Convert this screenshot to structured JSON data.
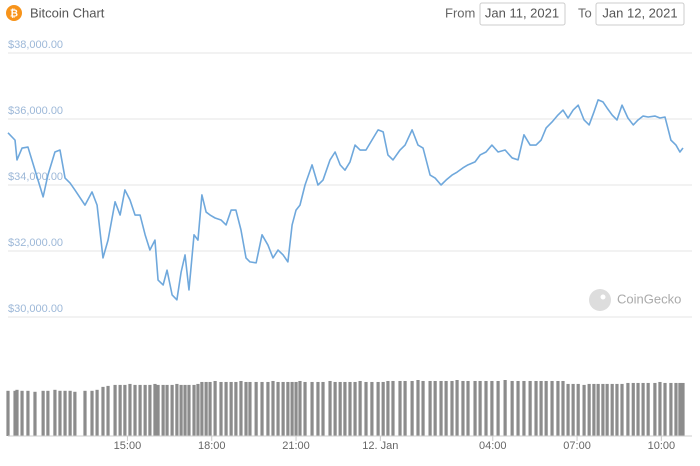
{
  "header": {
    "title": "Bitcoin Chart",
    "from_label": "From",
    "from_date": "Jan 11, 2021",
    "to_label": "To",
    "to_date": "Jan 12, 2021",
    "watermark": "CoinGecko"
  },
  "chart_data": {
    "type": "line",
    "color": "#6fa8dc",
    "volume_color": "#8c8c8c",
    "x": [
      10.75,
      11.0,
      11.07,
      11.25,
      11.46,
      11.71,
      12.0,
      12.17,
      12.42,
      12.6,
      12.78,
      12.96,
      13.13,
      13.49,
      13.74,
      13.92,
      14.13,
      14.31,
      14.56,
      14.74,
      14.91,
      15.09,
      15.27,
      15.45,
      15.63,
      15.8,
      15.98,
      16.09,
      16.27,
      16.41,
      16.59,
      16.76,
      16.91,
      17.05,
      17.19,
      17.37,
      17.51,
      17.65,
      17.8,
      17.94,
      18.12,
      18.33,
      18.51,
      18.69,
      18.86,
      19.04,
      19.22,
      19.36,
      19.58,
      19.79,
      20.0,
      20.18,
      20.36,
      20.54,
      20.71,
      20.86,
      21.0,
      21.14,
      21.32,
      21.57,
      21.78,
      21.96,
      22.21,
      22.39,
      22.57,
      22.74,
      22.92,
      23.1,
      23.28,
      23.49,
      23.7,
      23.92,
      24.1,
      24.27,
      24.45,
      24.7,
      24.88,
      25.13,
      25.34,
      25.52,
      25.77,
      25.95,
      26.16,
      26.34,
      26.55,
      26.73,
      26.94,
      27.12,
      27.37,
      27.55,
      27.76,
      27.97,
      28.19,
      28.44,
      28.69,
      28.9,
      29.11,
      29.33,
      29.54,
      29.72,
      29.9,
      30.11,
      30.32,
      30.5,
      30.68,
      30.86,
      31.04,
      31.25,
      31.43,
      31.6,
      31.75,
      31.92,
      32.07,
      32.25,
      32.42,
      32.6,
      32.81,
      33.0,
      33.17,
      33.35,
      33.53,
      33.77,
      33.95,
      34.13,
      34.34,
      34.52,
      34.66,
      34.77
    ],
    "values": [
      35580,
      35360,
      34760,
      35120,
      35150,
      34450,
      33640,
      34300,
      35000,
      35060,
      34210,
      34060,
      33850,
      33390,
      33790,
      33390,
      31790,
      32330,
      33490,
      33090,
      33850,
      33550,
      33090,
      33090,
      32490,
      32030,
      32330,
      31120,
      30970,
      31420,
      30670,
      30520,
      31360,
      31880,
      30820,
      32490,
      32330,
      33700,
      33180,
      33090,
      33000,
      32940,
      32790,
      33240,
      33240,
      32640,
      31790,
      31670,
      31640,
      32490,
      32180,
      31790,
      32030,
      31880,
      31670,
      32790,
      33240,
      33390,
      34000,
      34610,
      34000,
      34150,
      34760,
      35000,
      34610,
      34450,
      34700,
      35210,
      35060,
      35060,
      35360,
      35670,
      35610,
      34910,
      34760,
      35060,
      35210,
      35670,
      35210,
      35120,
      34300,
      34210,
      34000,
      34150,
      34300,
      34390,
      34520,
      34610,
      34700,
      34910,
      35000,
      35210,
      35000,
      35060,
      34820,
      34760,
      35520,
      35210,
      35210,
      35360,
      35730,
      35910,
      36120,
      36270,
      36030,
      36270,
      36420,
      35970,
      35820,
      36210,
      36580,
      36520,
      36330,
      36120,
      35970,
      36420,
      36030,
      35820,
      35970,
      36090,
      36060,
      36090,
      36030,
      36060,
      35360,
      35210,
      35000,
      35120
    ],
    "volume": [
      46,
      46,
      47,
      46,
      46,
      45,
      46,
      46,
      47,
      46,
      46,
      46,
      45,
      46,
      46,
      47,
      50,
      51,
      52,
      52,
      52,
      53,
      52,
      52,
      52,
      52,
      53,
      52,
      52,
      52,
      52,
      53,
      52,
      52,
      52,
      52,
      53,
      55,
      55,
      55,
      56,
      55,
      55,
      55,
      55,
      56,
      55,
      55,
      55,
      55,
      55,
      56,
      55,
      55,
      55,
      55,
      55,
      56,
      55,
      55,
      55,
      55,
      56,
      55,
      55,
      55,
      55,
      55,
      56,
      55,
      55,
      55,
      55,
      56,
      56,
      56,
      56,
      56,
      57,
      56,
      56,
      56,
      56,
      56,
      56,
      57,
      56,
      56,
      56,
      56,
      56,
      56,
      56,
      57,
      56,
      56,
      56,
      56,
      56,
      56,
      56,
      56,
      56,
      56,
      53,
      53,
      53,
      52,
      53,
      53,
      53,
      53,
      53,
      53,
      53,
      53,
      54,
      54,
      54,
      54,
      54,
      54,
      55,
      54,
      54,
      54,
      54,
      54
    ],
    "xlim": [
      10.75,
      34.77
    ],
    "xticks": [
      {
        "value": 15,
        "label": "15:00"
      },
      {
        "value": 18,
        "label": "18:00"
      },
      {
        "value": 21,
        "label": "21:00"
      },
      {
        "value": 24,
        "label": "12. Jan"
      },
      {
        "value": 28,
        "label": "04:00"
      },
      {
        "value": 31,
        "label": "07:00"
      },
      {
        "value": 34,
        "label": "10:00"
      }
    ],
    "ylim": [
      30000,
      38000
    ],
    "yticks": [
      {
        "value": 30000,
        "label": "$30,000.00"
      },
      {
        "value": 32000,
        "label": "$32,000.00"
      },
      {
        "value": 34000,
        "label": "$34,000.00"
      },
      {
        "value": 36000,
        "label": "$36,000.00"
      },
      {
        "value": 38000,
        "label": "$38,000.00"
      }
    ],
    "grid": true
  }
}
